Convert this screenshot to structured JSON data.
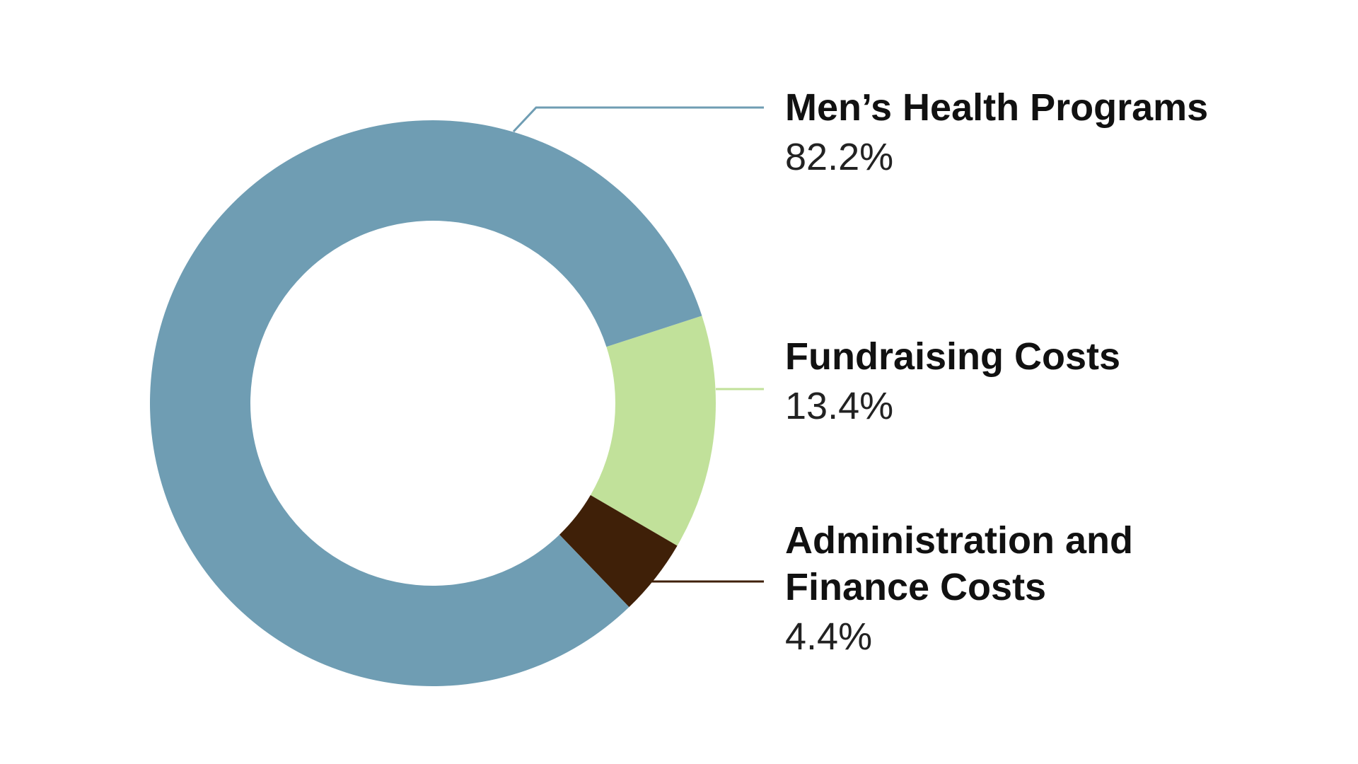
{
  "chart_data": {
    "type": "pie",
    "style": "donut",
    "slices": [
      {
        "label": "Men’s Health Programs",
        "label_lines": [
          "Men’s Health Programs"
        ],
        "value": 82.2,
        "value_text": "82.2%",
        "color": "#6f9db3"
      },
      {
        "label": "Fundraising Costs",
        "label_lines": [
          "Fundraising Costs"
        ],
        "value": 13.4,
        "value_text": "13.4%",
        "color": "#c1e19a"
      },
      {
        "label": "Administration and Finance Costs",
        "label_lines": [
          "Administration and",
          "Finance Costs"
        ],
        "value": 4.4,
        "value_text": "4.4%",
        "color": "#3f2008"
      }
    ]
  }
}
